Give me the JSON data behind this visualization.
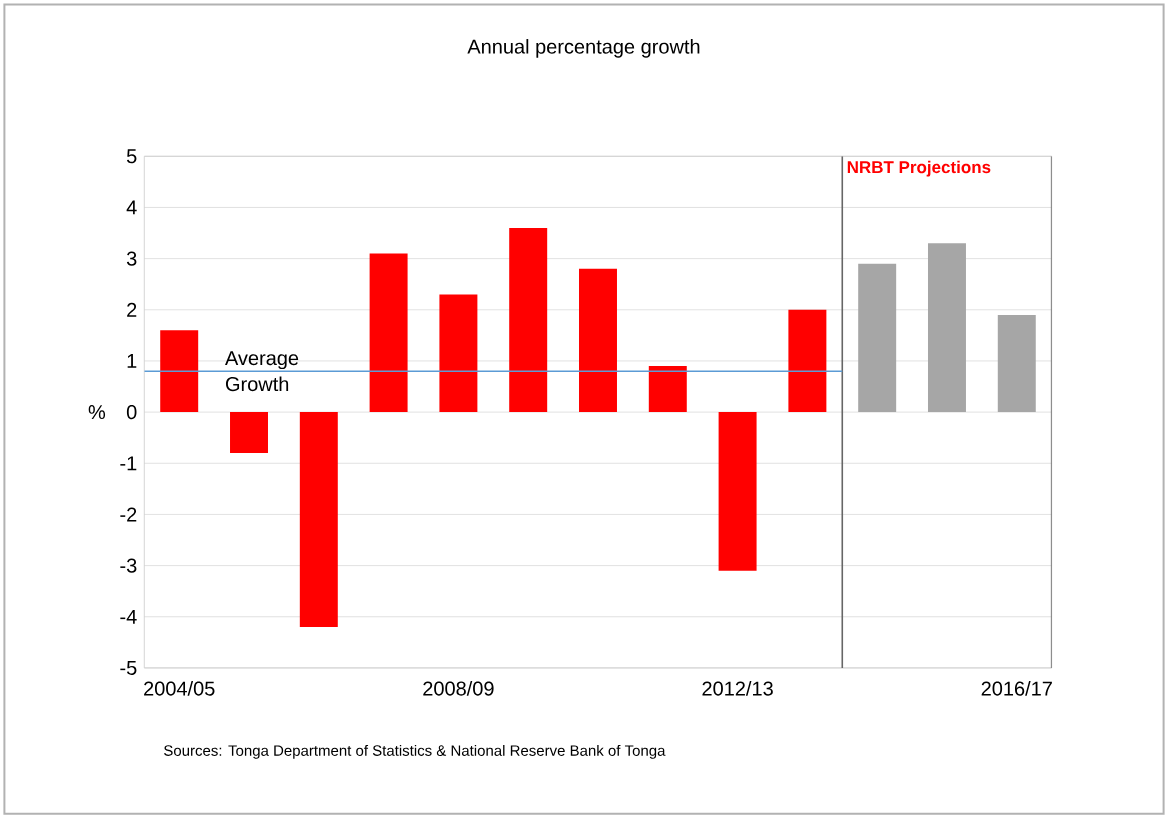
{
  "chart_data": {
    "type": "bar",
    "title": "Annual percentage growth",
    "ylabel": "%",
    "categories": [
      "2004/05",
      null,
      null,
      null,
      "2008/09",
      null,
      null,
      null,
      "2012/13",
      null,
      null,
      null,
      "2016/17"
    ],
    "values": [
      1.6,
      -0.8,
      -4.2,
      3.1,
      2.3,
      3.6,
      2.8,
      0.9,
      -3.1,
      2.0,
      2.9,
      3.3,
      1.9
    ],
    "colors": [
      "#ff0000",
      "#ff0000",
      "#ff0000",
      "#ff0000",
      "#ff0000",
      "#ff0000",
      "#ff0000",
      "#ff0000",
      "#ff0000",
      "#ff0000",
      "#a6a6a6",
      "#a6a6a6",
      "#a6a6a6"
    ],
    "ylim": [
      -5,
      5
    ],
    "yticks": [
      -5,
      -4,
      -3,
      -2,
      -1,
      0,
      1,
      2,
      3,
      4,
      5
    ],
    "grid": "y",
    "ref_lines": [
      {
        "axis": "y",
        "value": 0.8,
        "label": "Average Growth",
        "color": "#5b9bd5"
      }
    ],
    "annotations": [
      "NRBT Projections",
      "Sources: Tonga Department of Statistics & National Reserve Bank of Tonga"
    ]
  }
}
